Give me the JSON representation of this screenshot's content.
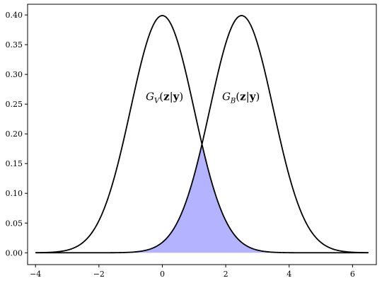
{
  "chart_data": {
    "type": "line",
    "xlim": [
      -4.25,
      6.75
    ],
    "ylim": [
      -0.0199,
      0.418
    ],
    "x_ticks": [
      -4,
      -2,
      0,
      2,
      4,
      6
    ],
    "x_tick_labels": [
      "−4",
      "−2",
      "0",
      "2",
      "4",
      "6"
    ],
    "y_ticks": [
      0.0,
      0.05,
      0.1,
      0.15,
      0.2,
      0.25,
      0.3,
      0.35,
      0.4
    ],
    "y_tick_labels": [
      "0.00",
      "0.05",
      "0.10",
      "0.15",
      "0.20",
      "0.25",
      "0.30",
      "0.35",
      "0.40"
    ],
    "grid": false,
    "x_range": [
      -4,
      6.5
    ],
    "series": [
      {
        "name": "G_V(z|y)",
        "distribution": "normal",
        "mean": 0,
        "std": 1,
        "color": "#000000",
        "label_parts": {
          "main": "G",
          "sub": "V",
          "open": "(",
          "z": "z",
          "bar": "|",
          "y": "y",
          "close": ")"
        },
        "label_at": [
          0.07,
          0.257
        ]
      },
      {
        "name": "G_B(z|y)",
        "distribution": "normal",
        "mean": 2.5,
        "std": 1,
        "color": "#000000",
        "label_parts": {
          "main": "G",
          "sub": "B",
          "open": "(",
          "z": "z",
          "bar": "|",
          "y": "y",
          "close": ")"
        },
        "label_at": [
          2.48,
          0.257
        ]
      }
    ],
    "shaded_overlap": {
      "description": "area under min of the two curves",
      "color": "#b3b3ff"
    }
  }
}
